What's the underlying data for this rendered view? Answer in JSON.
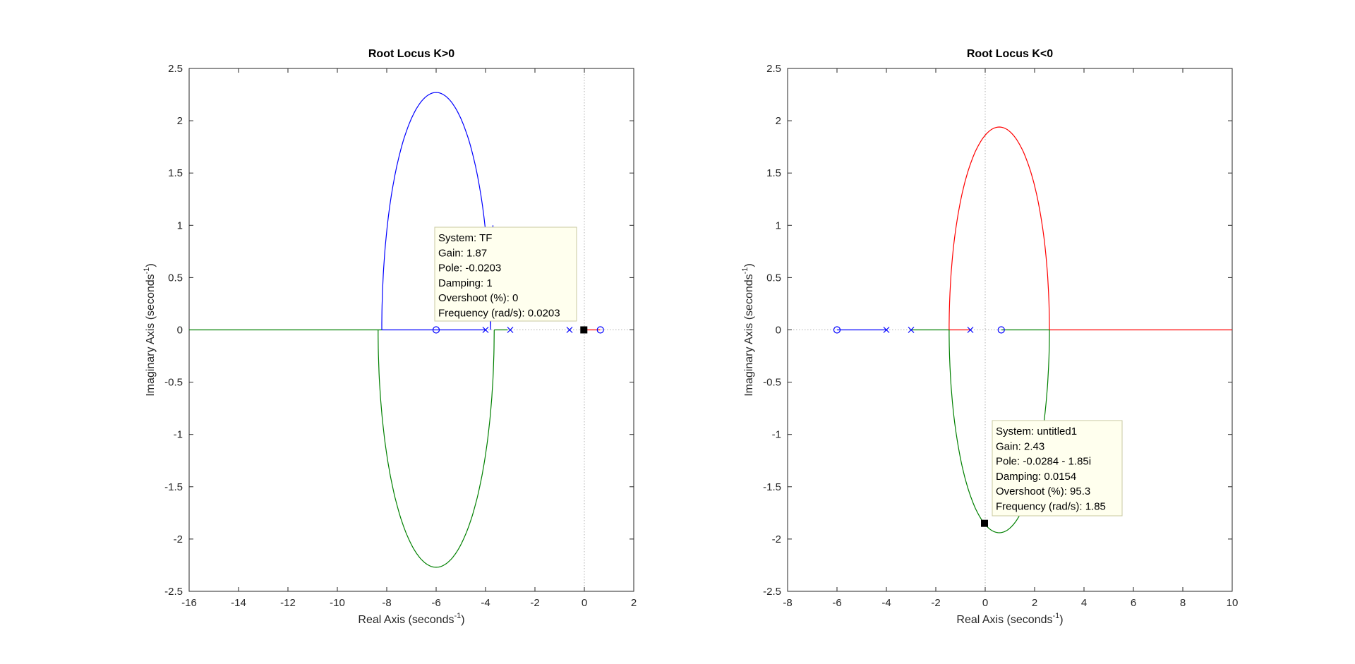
{
  "figure": {
    "background": "#ffffff",
    "axes_color": "#262626"
  },
  "chart_data": [
    {
      "type": "root-locus",
      "title": "Root Locus K>0",
      "xlabel": "Real Axis (seconds",
      "xlabel_sup": "-1",
      "xlabel_tail": ")",
      "ylabel": "Imaginary Axis (seconds",
      "ylabel_sup": "-1",
      "ylabel_tail": ")",
      "xlim": [
        -16,
        2
      ],
      "ylim": [
        -2.5,
        2.5
      ],
      "xticks": [
        -16,
        -14,
        -12,
        -10,
        -8,
        -6,
        -4,
        -2,
        0,
        2
      ],
      "yticks": [
        -2.5,
        -2,
        -1.5,
        -1,
        -0.5,
        0,
        0.5,
        1,
        1.5,
        2,
        2.5
      ],
      "xtick_labels": [
        "-16",
        "-14",
        "-12",
        "-10",
        "-8",
        "-6",
        "-4",
        "-2",
        "0",
        "2"
      ],
      "ytick_labels": [
        "-2.5",
        "-2",
        "-1.5",
        "-1",
        "-0.5",
        "0",
        "0.5",
        "1",
        "1.5",
        "2",
        "2.5"
      ],
      "grid": false,
      "poles": [
        -4,
        -3,
        -0.6
      ],
      "zeros": [
        -6,
        0.65
      ],
      "branches": [
        {
          "color": "#0000ff",
          "kind": "segment",
          "points": [
            [
              -6,
              0
            ],
            [
              -4,
              0
            ]
          ]
        },
        {
          "color": "#0000ff",
          "kind": "segment",
          "points": [
            [
              -8.2,
              0
            ],
            [
              -6,
              0
            ]
          ]
        },
        {
          "color": "#0000ff",
          "kind": "ellipse-arc",
          "center": [
            -6,
            0
          ],
          "rx": 2.2,
          "ry": 2.27,
          "from_deg": 180,
          "to_deg": 0,
          "tail_to": [
            -3.7,
            1.0
          ]
        },
        {
          "color": "#008000",
          "kind": "ellipse-arc",
          "center": [
            -6,
            0
          ],
          "rx": 2.35,
          "ry": 2.27,
          "from_deg": 180,
          "to_deg": 360,
          "tail_to": [
            -3.65,
            0
          ]
        },
        {
          "color": "#008000",
          "kind": "segment",
          "points": [
            [
              -16,
              0
            ],
            [
              -8.2,
              0
            ]
          ]
        },
        {
          "color": "#008000",
          "kind": "segment",
          "points": [
            [
              -3.1,
              0
            ],
            [
              -3.65,
              0
            ]
          ]
        },
        {
          "color": "#ff0000",
          "kind": "segment",
          "points": [
            [
              0.1,
              0
            ],
            [
              0.65,
              0
            ]
          ]
        }
      ],
      "marker": {
        "x": -0.0203,
        "y": 0
      },
      "datatip": {
        "lines": [
          "System: TF",
          "Gain: 1.87",
          "Pole: -0.0203",
          "Damping: 1",
          "Overshoot (%): 0",
          "Frequency (rad/s): 0.0203"
        ]
      }
    },
    {
      "type": "root-locus",
      "title": "Root Locus K<0",
      "xlabel": "Real Axis (seconds",
      "xlabel_sup": "-1",
      "xlabel_tail": ")",
      "ylabel": "Imaginary Axis (seconds",
      "ylabel_sup": "-1",
      "ylabel_tail": ")",
      "xlim": [
        -8,
        10
      ],
      "ylim": [
        -2.5,
        2.5
      ],
      "xticks": [
        -8,
        -6,
        -4,
        -2,
        0,
        2,
        4,
        6,
        8,
        10
      ],
      "yticks": [
        -2.5,
        -2,
        -1.5,
        -1,
        -0.5,
        0,
        0.5,
        1,
        1.5,
        2,
        2.5
      ],
      "xtick_labels": [
        "-8",
        "-6",
        "-4",
        "-2",
        "0",
        "2",
        "4",
        "6",
        "8",
        "10"
      ],
      "ytick_labels": [
        "-2.5",
        "-2",
        "-1.5",
        "-1",
        "-0.5",
        "0",
        "0.5",
        "1",
        "1.5",
        "2",
        "2.5"
      ],
      "grid": false,
      "poles": [
        -4,
        -3,
        -0.6
      ],
      "zeros": [
        -6,
        0.65
      ],
      "branches": [
        {
          "color": "#0000ff",
          "kind": "segment",
          "points": [
            [
              -6,
              0
            ],
            [
              -4,
              0
            ]
          ]
        },
        {
          "color": "#008000",
          "kind": "segment",
          "points": [
            [
              -3,
              0
            ],
            [
              -1.45,
              0
            ]
          ]
        },
        {
          "color": "#ff0000",
          "kind": "segment",
          "points": [
            [
              -0.6,
              0
            ],
            [
              -1.45,
              0
            ]
          ]
        },
        {
          "color": "#008000",
          "kind": "segment",
          "points": [
            [
              0.65,
              0
            ],
            [
              2.6,
              0
            ]
          ]
        },
        {
          "color": "#ff0000",
          "kind": "segment",
          "points": [
            [
              2.6,
              0
            ],
            [
              10,
              0
            ]
          ]
        },
        {
          "color": "#ff0000",
          "kind": "ellipse-arc",
          "center": [
            0.57,
            0
          ],
          "rx": 2.03,
          "ry": 1.94,
          "from_deg": 180,
          "to_deg": 0
        },
        {
          "color": "#008000",
          "kind": "ellipse-arc",
          "center": [
            0.57,
            0
          ],
          "rx": 2.03,
          "ry": 1.94,
          "from_deg": 180,
          "to_deg": 360
        }
      ],
      "marker": {
        "x": -0.0284,
        "y": -1.85
      },
      "datatip": {
        "lines": [
          "System: untitled1",
          "Gain: 2.43",
          "Pole: -0.0284 - 1.85i",
          "Damping: 0.0154",
          "Overshoot (%): 95.3",
          "Frequency (rad/s): 1.85"
        ]
      }
    }
  ]
}
